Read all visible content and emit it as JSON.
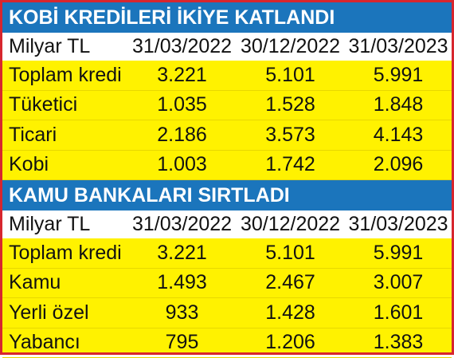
{
  "sections": [
    {
      "title": "KOBİ KREDİLERİ İKİYE KATLANDI",
      "header": [
        "Milyar TL",
        "31/03/2022",
        "30/12/2022",
        "31/03/2023"
      ],
      "rows": [
        [
          "Toplam kredi",
          "3.221",
          "5.101",
          "5.991"
        ],
        [
          "Tüketici",
          "1.035",
          "1.528",
          "1.848"
        ],
        [
          "Ticari",
          "2.186",
          "3.573",
          "4.143"
        ],
        [
          "Kobi",
          "1.003",
          "1.742",
          "2.096"
        ]
      ]
    },
    {
      "title": "KAMU BANKALARI SIRTLADI",
      "header": [
        "Milyar TL",
        "31/03/2022",
        "30/12/2022",
        "31/03/2023"
      ],
      "rows": [
        [
          "Toplam kredi",
          "3.221",
          "5.101",
          "5.991"
        ],
        [
          "Kamu",
          "1.493",
          "2.467",
          "3.007"
        ],
        [
          "Yerli özel",
          "933",
          "1.428",
          "1.601"
        ],
        [
          "Yabancı",
          "795",
          "1.206",
          "1.383"
        ]
      ]
    }
  ]
}
